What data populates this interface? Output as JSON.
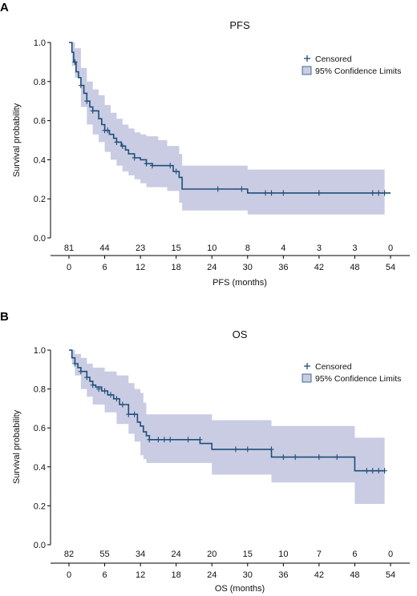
{
  "colors": {
    "curve": "#1f4e79",
    "ci_fill": "#c9cce3",
    "axis": "#000000"
  },
  "panels": [
    {
      "letter": "A",
      "title": "PFS",
      "xlabel": "PFS (months)",
      "ylabel": "Survival probability",
      "xticks": [
        "0",
        "6",
        "12",
        "18",
        "24",
        "30",
        "36",
        "42",
        "48",
        "54"
      ],
      "yticks": [
        "0.0",
        "0.2",
        "0.4",
        "0.6",
        "0.8",
        "1.0"
      ],
      "at_risk": [
        "81",
        "44",
        "23",
        "15",
        "10",
        "8",
        "4",
        "3",
        "3",
        "0"
      ],
      "legend": {
        "censored": "Censored",
        "ci": "95% Confidence Limits"
      }
    },
    {
      "letter": "B",
      "title": "OS",
      "xlabel": "OS (months)",
      "ylabel": "Survival probability",
      "xticks": [
        "0",
        "6",
        "12",
        "18",
        "24",
        "30",
        "36",
        "42",
        "48",
        "54"
      ],
      "yticks": [
        "0.0",
        "0.2",
        "0.4",
        "0.6",
        "0.8",
        "1.0"
      ],
      "at_risk": [
        "82",
        "55",
        "34",
        "24",
        "20",
        "15",
        "10",
        "7",
        "6",
        "0"
      ],
      "legend": {
        "censored": "Censored",
        "ci": "95% Confidence Limits"
      }
    }
  ],
  "chart_data": [
    {
      "type": "line",
      "title": "PFS",
      "xlabel": "PFS (months)",
      "ylabel": "Survival probability",
      "xlim": [
        0,
        54
      ],
      "ylim": [
        0,
        1.0
      ],
      "step": true,
      "series": [
        {
          "name": "Survival",
          "x": [
            0,
            0.5,
            0.8,
            1.2,
            1.6,
            2.0,
            2.5,
            3.0,
            3.5,
            4.0,
            5.0,
            5.5,
            6.0,
            6.8,
            7.5,
            8.0,
            8.8,
            9.5,
            10.0,
            11.0,
            12.0,
            13.0,
            14.0,
            16.0,
            17.5,
            18.5,
            19.0,
            30.0,
            54.0
          ],
          "y": [
            1.0,
            0.95,
            0.9,
            0.85,
            0.82,
            0.78,
            0.74,
            0.7,
            0.67,
            0.65,
            0.61,
            0.58,
            0.55,
            0.53,
            0.51,
            0.49,
            0.47,
            0.45,
            0.43,
            0.41,
            0.4,
            0.38,
            0.37,
            0.37,
            0.34,
            0.31,
            0.25,
            0.23,
            0.23
          ]
        }
      ],
      "ci": {
        "x": [
          0,
          0.5,
          1.0,
          2.0,
          3.0,
          4.0,
          5.0,
          6.0,
          7.0,
          8.0,
          9.0,
          10.0,
          11.0,
          12.0,
          13.0,
          15.0,
          16.5,
          18.5,
          19.0,
          30.0,
          53.0
        ],
        "lower": [
          1.0,
          0.88,
          0.82,
          0.67,
          0.58,
          0.53,
          0.49,
          0.44,
          0.4,
          0.37,
          0.34,
          0.32,
          0.3,
          0.28,
          0.26,
          0.26,
          0.24,
          0.18,
          0.14,
          0.12,
          0.12
        ],
        "upper": [
          1.0,
          1.0,
          0.97,
          0.87,
          0.8,
          0.76,
          0.73,
          0.68,
          0.64,
          0.61,
          0.58,
          0.56,
          0.54,
          0.53,
          0.52,
          0.5,
          0.47,
          0.43,
          0.37,
          0.35,
          0.35
        ]
      },
      "censored": {
        "x": [
          1.0,
          2.0,
          3.0,
          4.0,
          6.0,
          6.5,
          8.0,
          9.0,
          11.0,
          13.0,
          14.0,
          17.0,
          18.0,
          25.0,
          29.0,
          33.0,
          34.0,
          36.0,
          42.0,
          51.0,
          52.0,
          53.0
        ],
        "y": [
          0.9,
          0.78,
          0.7,
          0.65,
          0.55,
          0.55,
          0.49,
          0.47,
          0.41,
          0.38,
          0.37,
          0.37,
          0.34,
          0.25,
          0.25,
          0.23,
          0.23,
          0.23,
          0.23,
          0.23,
          0.23,
          0.23
        ]
      },
      "at_risk": {
        "x": [
          0,
          6,
          12,
          18,
          24,
          30,
          36,
          42,
          48,
          54
        ],
        "n": [
          81,
          44,
          23,
          15,
          10,
          8,
          4,
          3,
          3,
          0
        ]
      },
      "legend": [
        "Censored",
        "95% Confidence Limits"
      ],
      "legend_position": "top-right"
    },
    {
      "type": "line",
      "title": "OS",
      "xlabel": "OS (months)",
      "ylabel": "Survival probability",
      "xlim": [
        0,
        54
      ],
      "ylim": [
        0,
        1.0
      ],
      "step": true,
      "series": [
        {
          "name": "Survival",
          "x": [
            0,
            0.5,
            1.0,
            1.5,
            2.0,
            3.0,
            3.5,
            4.0,
            4.5,
            5.5,
            6.5,
            7.5,
            8.5,
            10.0,
            11.5,
            12.0,
            12.5,
            13.0,
            13.5,
            22.0,
            24.0,
            34.0,
            48.0,
            53.0
          ],
          "y": [
            1.0,
            0.96,
            0.93,
            0.91,
            0.89,
            0.86,
            0.84,
            0.82,
            0.81,
            0.79,
            0.77,
            0.75,
            0.72,
            0.67,
            0.63,
            0.61,
            0.58,
            0.56,
            0.54,
            0.52,
            0.49,
            0.45,
            0.38,
            0.38
          ]
        }
      ],
      "ci": {
        "x": [
          0,
          0.5,
          1.0,
          2.0,
          3.0,
          4.0,
          6.0,
          8.0,
          10.0,
          11.0,
          12.0,
          12.5,
          13.0,
          15.0,
          24.0,
          34.0,
          48.0,
          53.0
        ],
        "lower": [
          1.0,
          0.93,
          0.87,
          0.8,
          0.76,
          0.72,
          0.68,
          0.62,
          0.57,
          0.53,
          0.46,
          0.44,
          0.42,
          0.42,
          0.36,
          0.32,
          0.21,
          0.21
        ],
        "upper": [
          1.0,
          1.0,
          0.98,
          0.96,
          0.93,
          0.91,
          0.89,
          0.87,
          0.83,
          0.8,
          0.78,
          0.73,
          0.67,
          0.67,
          0.64,
          0.61,
          0.55,
          0.55
        ]
      },
      "censored": {
        "x": [
          1.0,
          2.0,
          3.0,
          4.0,
          5.0,
          6.0,
          7.0,
          8.0,
          9.0,
          10.0,
          11.0,
          13.5,
          15.0,
          16.0,
          17.0,
          20.0,
          22.0,
          28.0,
          30.0,
          34.0,
          36.0,
          38.0,
          42.0,
          45.0,
          50.0,
          51.0,
          52.0,
          53.0
        ],
        "y": [
          0.93,
          0.89,
          0.86,
          0.82,
          0.8,
          0.79,
          0.77,
          0.75,
          0.72,
          0.67,
          0.67,
          0.54,
          0.54,
          0.54,
          0.54,
          0.54,
          0.54,
          0.49,
          0.49,
          0.49,
          0.45,
          0.45,
          0.45,
          0.45,
          0.38,
          0.38,
          0.38,
          0.38
        ]
      },
      "at_risk": {
        "x": [
          0,
          6,
          12,
          18,
          24,
          30,
          36,
          42,
          48,
          54
        ],
        "n": [
          82,
          55,
          34,
          24,
          20,
          15,
          10,
          7,
          6,
          0
        ]
      },
      "legend": [
        "Censored",
        "95% Confidence Limits"
      ],
      "legend_position": "top-right"
    }
  ]
}
